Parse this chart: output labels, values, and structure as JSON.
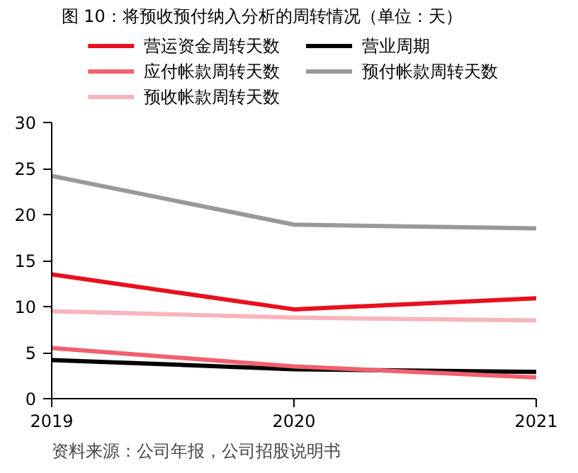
{
  "chart_data": {
    "type": "line",
    "title": "图 10：将预收预付纳入分析的周转情况（单位：天）",
    "x": [
      2019,
      2020,
      2021
    ],
    "xlim": [
      2019,
      2021
    ],
    "xticks": [
      2019,
      2020,
      2021
    ],
    "ylim": [
      0,
      30
    ],
    "yticks": [
      0,
      5,
      10,
      15,
      20,
      25,
      30
    ],
    "series": [
      {
        "name": "营运资金周转天数",
        "color": "#e8101e",
        "values": [
          13.5,
          9.7,
          10.9
        ]
      },
      {
        "name": "营业周期",
        "color": "#000000",
        "values": [
          4.2,
          3.2,
          2.9
        ]
      },
      {
        "name": "应付帐款周转天数",
        "color": "#f0606e",
        "values": [
          5.5,
          3.5,
          2.3
        ]
      },
      {
        "name": "预付帐款周转天数",
        "color": "#999999",
        "values": [
          24.2,
          18.9,
          18.5
        ]
      },
      {
        "name": "预收帐款周转天数",
        "color": "#f8b4bc",
        "values": [
          9.5,
          8.8,
          8.5
        ]
      }
    ],
    "legend": "top",
    "grid": false,
    "marker": "none",
    "line_style": "solid",
    "annotations": [
      "资料来源：公司年报，公司招股说明书"
    ]
  }
}
